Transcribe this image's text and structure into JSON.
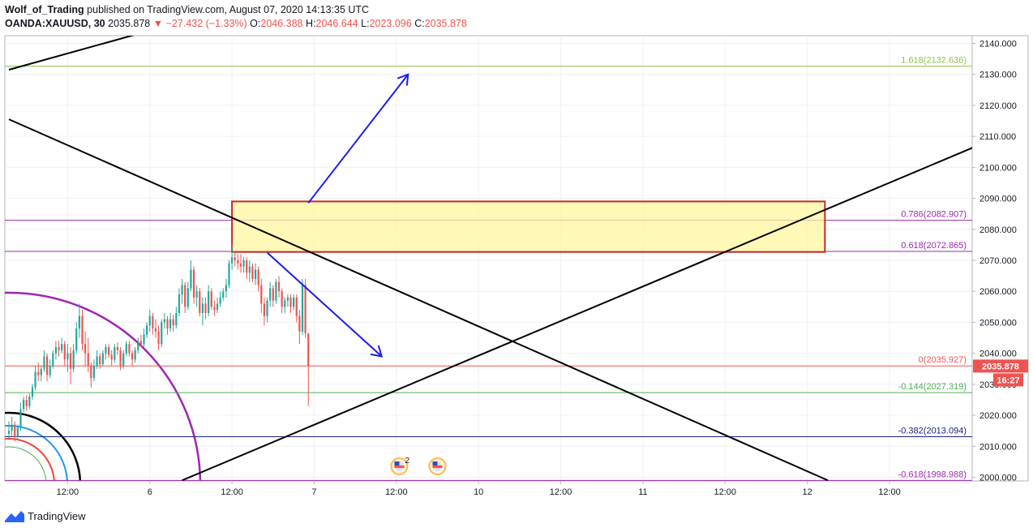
{
  "header": {
    "author": "Wolf_of_Trading",
    "published": " published on TradingView.com, August 07, 2020 14:13:35 UTC",
    "symbol": "OANDA:XAUUSD, 30",
    "last": "2035.878",
    "arrow": "▼",
    "change": "−27.432 (−1.33%)",
    "o_label": "O:",
    "o": "2046.388",
    "h_label": "H:",
    "h": "2046.644",
    "l_label": "L:",
    "l": "2023.096",
    "c_label": "C:",
    "c": "2035.878"
  },
  "footer": {
    "brand": "TradingView"
  },
  "colors": {
    "up": "#26a69a",
    "down": "#ef5350",
    "fib_green": "#8bc34a",
    "fib_purple": "#9c27b0",
    "fib_red": "#ef5350",
    "fib_dgreen": "#4caf50",
    "fib_navy": "#1a237e",
    "zone_fill": "#fff59d",
    "zone_border": "#c62828",
    "arrow": "#1c1cf0",
    "trend": "#000000"
  },
  "chart_data": {
    "type": "candlestick",
    "symbol": "OANDA:XAUUSD",
    "interval": "30",
    "ylim": [
      1998,
      2144
    ],
    "y_ticks": [
      2000,
      2010,
      2020,
      2030,
      2040,
      2050,
      2060,
      2070,
      2080,
      2090,
      2100,
      2110,
      2120,
      2130,
      2140
    ],
    "y_tick_labels": [
      "2000.000",
      "2010.000",
      "2020.000",
      "2030.000",
      "2040.000",
      "2050.000",
      "2060.000",
      "2070.000",
      "2080.000",
      "2090.000",
      "2100.000",
      "2110.000",
      "2120.000",
      "2130.000",
      "2140.000"
    ],
    "x_labels": [
      "12:00",
      "6",
      "12:00",
      "7",
      "12:00",
      "10",
      "12:00",
      "11",
      "12:00",
      "12",
      "12:00"
    ],
    "x_label_bars": [
      20,
      48,
      76,
      104,
      132,
      160,
      188,
      216,
      244,
      272,
      300
    ],
    "last_price": "2035.878",
    "countdown": "16:27",
    "fib_levels": [
      {
        "label": "1.618(2132.636)",
        "value": 2132.636,
        "color": "#8bc34a"
      },
      {
        "label": "0.786(2082.907)",
        "value": 2082.907,
        "color": "#9c27b0"
      },
      {
        "label": "0.618(2072.865)",
        "value": 2072.865,
        "color": "#9c27b0"
      },
      {
        "label": "0(2035.927)",
        "value": 2035.927,
        "color": "#ef5350"
      },
      {
        "label": "-0.144(2027.319)",
        "value": 2027.319,
        "color": "#4caf50"
      },
      {
        "label": "-0.382(2013.094)",
        "value": 2013.094,
        "color": "#1a237e"
      },
      {
        "label": "-0.618(1998.988)",
        "value": 1998.988,
        "color": "#9c27b0"
      }
    ],
    "zone": {
      "bar_start": 76,
      "bar_end": 278,
      "top": 2089,
      "bottom": 2072.7
    },
    "trendlines": [
      {
        "from": [
          0,
          2131.5
        ],
        "to": [
          46,
          2143.6
        ]
      },
      {
        "from": [
          0,
          2115.5
        ],
        "to": [
          279,
          1999
        ]
      },
      {
        "from": [
          59,
          1999
        ],
        "to": [
          330,
          2107
        ]
      }
    ],
    "arrows": [
      {
        "from": [
          102,
          2088.5
        ],
        "to": [
          136,
          2130
        ]
      },
      {
        "from": [
          88,
          2072.5
        ],
        "to": [
          127,
          2039
        ]
      }
    ],
    "event_markers": [
      {
        "bar": 133,
        "badge": "2"
      },
      {
        "bar": 146,
        "badge": ""
      }
    ],
    "candles": [
      {
        "o": 2014.0,
        "h": 2018.0,
        "l": 2012.0,
        "c": 2015.0
      },
      {
        "o": 2015.0,
        "h": 2019.5,
        "l": 2013.0,
        "c": 2017.0
      },
      {
        "o": 2017.0,
        "h": 2018.0,
        "l": 2011.5,
        "c": 2013.0
      },
      {
        "o": 2013.0,
        "h": 2017.0,
        "l": 2012.0,
        "c": 2016.0
      },
      {
        "o": 2016.0,
        "h": 2024.0,
        "l": 2015.0,
        "c": 2022.0
      },
      {
        "o": 2022.0,
        "h": 2026.0,
        "l": 2021.0,
        "c": 2025.0
      },
      {
        "o": 2025.0,
        "h": 2026.5,
        "l": 2021.5,
        "c": 2023.0
      },
      {
        "o": 2023.0,
        "h": 2027.0,
        "l": 2022.0,
        "c": 2026.0
      },
      {
        "o": 2026.0,
        "h": 2030.0,
        "l": 2025.0,
        "c": 2029.0
      },
      {
        "o": 2029.0,
        "h": 2036.0,
        "l": 2028.0,
        "c": 2034.0
      },
      {
        "o": 2034.0,
        "h": 2037.0,
        "l": 2031.0,
        "c": 2033.0
      },
      {
        "o": 2033.0,
        "h": 2036.0,
        "l": 2031.0,
        "c": 2035.0
      },
      {
        "o": 2035.0,
        "h": 2041.0,
        "l": 2034.0,
        "c": 2039.0
      },
      {
        "o": 2039.0,
        "h": 2040.0,
        "l": 2031.0,
        "c": 2033.0
      },
      {
        "o": 2033.0,
        "h": 2038.0,
        "l": 2032.0,
        "c": 2036.0
      },
      {
        "o": 2036.0,
        "h": 2041.0,
        "l": 2035.0,
        "c": 2040.0
      },
      {
        "o": 2040.0,
        "h": 2044.0,
        "l": 2038.0,
        "c": 2042.0
      },
      {
        "o": 2042.0,
        "h": 2044.0,
        "l": 2039.0,
        "c": 2041.0
      },
      {
        "o": 2041.0,
        "h": 2045.0,
        "l": 2040.0,
        "c": 2043.0
      },
      {
        "o": 2043.0,
        "h": 2044.0,
        "l": 2036.0,
        "c": 2038.0
      },
      {
        "o": 2038.0,
        "h": 2043.0,
        "l": 2034.0,
        "c": 2040.0
      },
      {
        "o": 2040.0,
        "h": 2042.0,
        "l": 2030.0,
        "c": 2035.0
      },
      {
        "o": 2035.0,
        "h": 2043.0,
        "l": 2034.0,
        "c": 2041.0
      },
      {
        "o": 2041.0,
        "h": 2050.0,
        "l": 2040.0,
        "c": 2048.0
      },
      {
        "o": 2048.0,
        "h": 2056.0,
        "l": 2045.0,
        "c": 2052.0
      },
      {
        "o": 2052.0,
        "h": 2054.0,
        "l": 2041.0,
        "c": 2043.0
      },
      {
        "o": 2043.0,
        "h": 2047.0,
        "l": 2036.0,
        "c": 2040.0
      },
      {
        "o": 2040.0,
        "h": 2045.0,
        "l": 2034.0,
        "c": 2036.0
      },
      {
        "o": 2036.0,
        "h": 2037.0,
        "l": 2029.0,
        "c": 2032.0
      },
      {
        "o": 2032.0,
        "h": 2038.0,
        "l": 2031.0,
        "c": 2036.0
      },
      {
        "o": 2036.0,
        "h": 2041.0,
        "l": 2035.0,
        "c": 2039.0
      },
      {
        "o": 2039.0,
        "h": 2040.0,
        "l": 2035.0,
        "c": 2036.5
      },
      {
        "o": 2036.5,
        "h": 2041.0,
        "l": 2036.0,
        "c": 2040.0
      },
      {
        "o": 2040.0,
        "h": 2043.0,
        "l": 2038.0,
        "c": 2042.0
      },
      {
        "o": 2042.0,
        "h": 2043.0,
        "l": 2038.5,
        "c": 2039.5
      },
      {
        "o": 2039.5,
        "h": 2041.0,
        "l": 2036.0,
        "c": 2038.0
      },
      {
        "o": 2038.0,
        "h": 2043.0,
        "l": 2037.0,
        "c": 2042.0
      },
      {
        "o": 2042.0,
        "h": 2043.5,
        "l": 2039.5,
        "c": 2041.0
      },
      {
        "o": 2041.0,
        "h": 2042.0,
        "l": 2034.5,
        "c": 2036.0
      },
      {
        "o": 2036.0,
        "h": 2041.0,
        "l": 2035.0,
        "c": 2040.0
      },
      {
        "o": 2040.0,
        "h": 2044.0,
        "l": 2039.0,
        "c": 2043.0
      },
      {
        "o": 2043.0,
        "h": 2044.0,
        "l": 2039.0,
        "c": 2040.0
      },
      {
        "o": 2040.0,
        "h": 2041.0,
        "l": 2036.0,
        "c": 2038.0
      },
      {
        "o": 2038.0,
        "h": 2042.0,
        "l": 2037.0,
        "c": 2041.0
      },
      {
        "o": 2041.0,
        "h": 2045.0,
        "l": 2040.0,
        "c": 2044.0
      },
      {
        "o": 2044.0,
        "h": 2046.0,
        "l": 2042.0,
        "c": 2043.0
      },
      {
        "o": 2043.0,
        "h": 2048.0,
        "l": 2042.0,
        "c": 2046.0
      },
      {
        "o": 2046.0,
        "h": 2050.0,
        "l": 2045.0,
        "c": 2049.0
      },
      {
        "o": 2049.0,
        "h": 2054.0,
        "l": 2047.0,
        "c": 2052.0
      },
      {
        "o": 2052.0,
        "h": 2053.0,
        "l": 2046.0,
        "c": 2048.0
      },
      {
        "o": 2048.0,
        "h": 2051.0,
        "l": 2045.0,
        "c": 2047.0
      },
      {
        "o": 2047.0,
        "h": 2049.0,
        "l": 2041.0,
        "c": 2043.0
      },
      {
        "o": 2043.0,
        "h": 2051.0,
        "l": 2042.0,
        "c": 2050.0
      },
      {
        "o": 2050.0,
        "h": 2053.0,
        "l": 2048.0,
        "c": 2051.0
      },
      {
        "o": 2051.0,
        "h": 2052.0,
        "l": 2046.0,
        "c": 2048.0
      },
      {
        "o": 2048.0,
        "h": 2053.0,
        "l": 2047.0,
        "c": 2051.0
      },
      {
        "o": 2051.0,
        "h": 2052.5,
        "l": 2047.0,
        "c": 2049.0
      },
      {
        "o": 2049.0,
        "h": 2055.0,
        "l": 2048.0,
        "c": 2053.0
      },
      {
        "o": 2053.0,
        "h": 2061.0,
        "l": 2052.0,
        "c": 2059.0
      },
      {
        "o": 2059.0,
        "h": 2064.0,
        "l": 2056.0,
        "c": 2062.0
      },
      {
        "o": 2062.0,
        "h": 2063.0,
        "l": 2053.0,
        "c": 2055.0
      },
      {
        "o": 2055.0,
        "h": 2063.0,
        "l": 2054.0,
        "c": 2061.0
      },
      {
        "o": 2061.0,
        "h": 2070.0,
        "l": 2060.0,
        "c": 2067.0
      },
      {
        "o": 2067.0,
        "h": 2068.0,
        "l": 2056.0,
        "c": 2058.0
      },
      {
        "o": 2058.0,
        "h": 2062.0,
        "l": 2055.0,
        "c": 2060.0
      },
      {
        "o": 2060.0,
        "h": 2061.0,
        "l": 2052.0,
        "c": 2053.0
      },
      {
        "o": 2053.0,
        "h": 2058.0,
        "l": 2049.0,
        "c": 2056.0
      },
      {
        "o": 2056.0,
        "h": 2058.0,
        "l": 2051.0,
        "c": 2053.0
      },
      {
        "o": 2053.0,
        "h": 2062.0,
        "l": 2052.0,
        "c": 2060.0
      },
      {
        "o": 2060.0,
        "h": 2061.0,
        "l": 2054.0,
        "c": 2055.0
      },
      {
        "o": 2055.0,
        "h": 2057.0,
        "l": 2052.0,
        "c": 2054.0
      },
      {
        "o": 2054.0,
        "h": 2058.0,
        "l": 2053.0,
        "c": 2056.0
      },
      {
        "o": 2056.0,
        "h": 2060.0,
        "l": 2055.0,
        "c": 2058.0
      },
      {
        "o": 2058.0,
        "h": 2061.0,
        "l": 2057.0,
        "c": 2060.0
      },
      {
        "o": 2060.0,
        "h": 2064.0,
        "l": 2058.0,
        "c": 2062.0
      },
      {
        "o": 2062.0,
        "h": 2070.0,
        "l": 2061.0,
        "c": 2069.0
      },
      {
        "o": 2069.0,
        "h": 2075.0,
        "l": 2067.0,
        "c": 2071.0
      },
      {
        "o": 2071.0,
        "h": 2073.0,
        "l": 2068.0,
        "c": 2070.0
      },
      {
        "o": 2070.0,
        "h": 2072.0,
        "l": 2067.0,
        "c": 2069.0
      },
      {
        "o": 2069.0,
        "h": 2072.0,
        "l": 2066.0,
        "c": 2068.0
      },
      {
        "o": 2068.0,
        "h": 2071.0,
        "l": 2066.0,
        "c": 2070.0
      },
      {
        "o": 2070.0,
        "h": 2071.0,
        "l": 2064.0,
        "c": 2066.0
      },
      {
        "o": 2066.0,
        "h": 2070.0,
        "l": 2063.0,
        "c": 2068.0
      },
      {
        "o": 2068.0,
        "h": 2069.0,
        "l": 2063.0,
        "c": 2064.0
      },
      {
        "o": 2064.0,
        "h": 2069.0,
        "l": 2062.0,
        "c": 2067.0
      },
      {
        "o": 2067.0,
        "h": 2068.0,
        "l": 2060.0,
        "c": 2062.0
      },
      {
        "o": 2062.0,
        "h": 2064.0,
        "l": 2053.0,
        "c": 2056.0
      },
      {
        "o": 2056.0,
        "h": 2058.0,
        "l": 2049.0,
        "c": 2052.0
      },
      {
        "o": 2052.0,
        "h": 2058.0,
        "l": 2050.0,
        "c": 2057.0
      },
      {
        "o": 2057.0,
        "h": 2063.0,
        "l": 2055.0,
        "c": 2061.0
      },
      {
        "o": 2061.0,
        "h": 2062.0,
        "l": 2055.0,
        "c": 2057.0
      },
      {
        "o": 2057.0,
        "h": 2064.0,
        "l": 2056.0,
        "c": 2063.0
      },
      {
        "o": 2063.0,
        "h": 2065.0,
        "l": 2058.0,
        "c": 2060.0
      },
      {
        "o": 2060.0,
        "h": 2061.0,
        "l": 2053.0,
        "c": 2055.0
      },
      {
        "o": 2055.0,
        "h": 2058.0,
        "l": 2053.0,
        "c": 2057.0
      },
      {
        "o": 2057.0,
        "h": 2059.0,
        "l": 2055.0,
        "c": 2058.0
      },
      {
        "o": 2058.0,
        "h": 2059.0,
        "l": 2053.0,
        "c": 2055.0
      },
      {
        "o": 2055.0,
        "h": 2059.0,
        "l": 2054.0,
        "c": 2058.0
      },
      {
        "o": 2058.0,
        "h": 2059.0,
        "l": 2050.0,
        "c": 2052.0
      },
      {
        "o": 2052.0,
        "h": 2054.0,
        "l": 2043.0,
        "c": 2047.0
      },
      {
        "o": 2047.0,
        "h": 2064.0,
        "l": 2046.0,
        "c": 2062.0
      },
      {
        "o": 2062.0,
        "h": 2064.0,
        "l": 2045.0,
        "c": 2046.4
      },
      {
        "o": 2046.4,
        "h": 2046.6,
        "l": 2023.1,
        "c": 2035.9
      }
    ]
  }
}
